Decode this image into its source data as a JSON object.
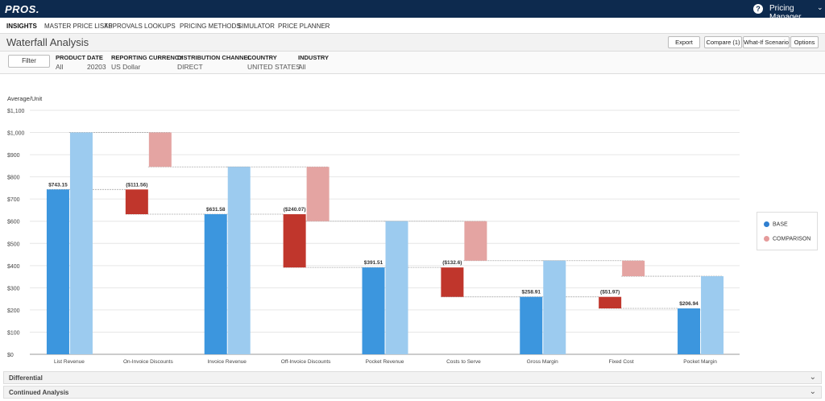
{
  "app": {
    "logo": "PROS."
  },
  "header": {
    "help_icon": "?",
    "user_role": "Pricing Manager",
    "caret": "⌄"
  },
  "nav": [
    "INSIGHTS",
    "MASTER PRICE LISTS",
    "APPROVALS",
    "LOOKUPS",
    "PRICING METHODS",
    "SIMULATOR",
    "PRICE PLANNER"
  ],
  "page": {
    "title": "Waterfall Analysis"
  },
  "toolbar": {
    "export": "Export",
    "compare": "Compare (1)",
    "whatif": "What-If Scenario",
    "options": "Options"
  },
  "filters": {
    "button": "Filter",
    "items": [
      {
        "label": "PRODUCT",
        "value": "All"
      },
      {
        "label": "DATE",
        "value": "20203"
      },
      {
        "label": "REPORTING CURRENCY",
        "value": "US Dollar"
      },
      {
        "label": "DISTRIBUTION CHANNEL",
        "value": "DIRECT"
      },
      {
        "label": "COUNTRY",
        "value": "UNITED STATES"
      },
      {
        "label": "INDUSTRY",
        "value": "All"
      }
    ]
  },
  "chart_data": {
    "type": "bar",
    "ylabel": "Average/Unit",
    "ylim": [
      0,
      1100
    ],
    "yticks": [
      "$0",
      "$100",
      "$200",
      "$300",
      "$400",
      "$500",
      "$600",
      "$700",
      "$800",
      "$900",
      "$1,000",
      "$1,100"
    ],
    "categories": [
      "List Revenue",
      "On-Invoice Discounts",
      "Invoice Revenue",
      "Off-Invoice Discounts",
      "Pocket Revenue",
      "Costs to Serve",
      "Gross Margin",
      "Fixed Cost",
      "Pocket Margin"
    ],
    "series": [
      {
        "name": "BASE",
        "bars": [
          {
            "bottom": 0,
            "top": 743.15,
            "label": "$743.15",
            "kind": "total"
          },
          {
            "bottom": 631.58,
            "top": 743.15,
            "label": "($111.56)",
            "kind": "delta"
          },
          {
            "bottom": 0,
            "top": 631.58,
            "label": "$631.58",
            "kind": "total"
          },
          {
            "bottom": 391.51,
            "top": 631.58,
            "label": "($240.07)",
            "kind": "delta"
          },
          {
            "bottom": 0,
            "top": 391.51,
            "label": "$391.51",
            "kind": "total"
          },
          {
            "bottom": 258.91,
            "top": 391.51,
            "label": "($132.6)",
            "kind": "delta"
          },
          {
            "bottom": 0,
            "top": 258.91,
            "label": "$258.91",
            "kind": "total"
          },
          {
            "bottom": 206.94,
            "top": 258.91,
            "label": "($51.97)",
            "kind": "delta"
          },
          {
            "bottom": 0,
            "top": 206.94,
            "label": "$206.94",
            "kind": "total"
          }
        ]
      },
      {
        "name": "COMPARISON",
        "bars": [
          {
            "bottom": 0,
            "top": 1000,
            "kind": "total"
          },
          {
            "bottom": 845,
            "top": 1000,
            "kind": "delta"
          },
          {
            "bottom": 0,
            "top": 845,
            "kind": "total"
          },
          {
            "bottom": 600,
            "top": 845,
            "kind": "delta"
          },
          {
            "bottom": 0,
            "top": 600,
            "kind": "total"
          },
          {
            "bottom": 422,
            "top": 600,
            "kind": "delta"
          },
          {
            "bottom": 0,
            "top": 422,
            "kind": "total"
          },
          {
            "bottom": 352,
            "top": 422,
            "kind": "delta"
          },
          {
            "bottom": 0,
            "top": 352,
            "kind": "total"
          }
        ]
      }
    ],
    "legend": [
      "BASE",
      "COMPARISON"
    ],
    "legend_position": "right",
    "grid": true
  },
  "colors": {
    "base_total": "#3c96de",
    "base_delta": "#c0362c",
    "comp_total": "#9ccbef",
    "comp_delta": "#e4a4a2",
    "legend_base": "#2f7fd0",
    "legend_comp": "#e59b9b"
  },
  "sections": [
    {
      "title": "Differential"
    },
    {
      "title": "Continued Analysis"
    }
  ]
}
